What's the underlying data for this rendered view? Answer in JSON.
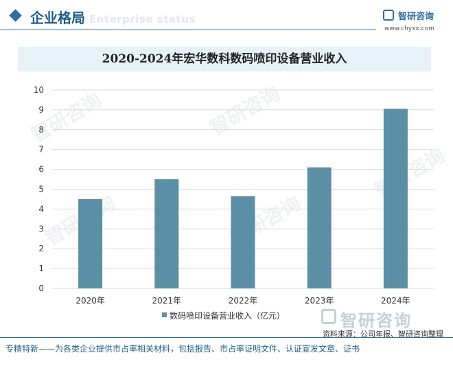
{
  "header": {
    "section_title": "企业格局",
    "section_subtitle": "Enterprise status",
    "brand_name": "智研咨询",
    "brand_url": "www.chyxx.com",
    "watermark": "智研咨询"
  },
  "chart_data": {
    "type": "bar",
    "title": "2020-2024年宏华数科数码喷印设备营业收入",
    "categories": [
      "2020年",
      "2021年",
      "2022年",
      "2023年",
      "2024年"
    ],
    "series": [
      {
        "name": "数码喷印设备营业收入（亿元）",
        "values": [
          4.5,
          5.5,
          4.65,
          6.1,
          9.05
        ]
      }
    ],
    "ylim": [
      0,
      10
    ],
    "yticks": [
      0,
      1,
      2,
      3,
      4,
      5,
      6,
      7,
      8,
      9,
      10
    ],
    "grid": true,
    "legend_position": "bottom",
    "bar_color": "#5b8fa6"
  },
  "source": "资料来源：公司年报、智研咨询整理",
  "footer": "专精特新——为各类企业提供市占率相关材料，包括报告、市占率证明文件、认证宣发文章、证书"
}
